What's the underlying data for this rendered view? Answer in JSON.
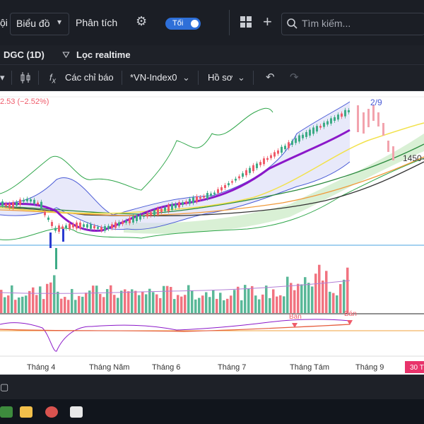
{
  "menu": {
    "partial_left": "ội",
    "chart_select": "Biểu đồ",
    "analysis": "Phân tích",
    "theme_toggle": "Tối",
    "search_placeholder": "Tìm kiếm..."
  },
  "subbar": {
    "symbol": "DGC (1D)",
    "filter": "Lọc realtime"
  },
  "toolbar": {
    "indicators": "Các chỉ báo",
    "compare": "*VN-Index0",
    "profile": "Hồ sơ"
  },
  "chart": {
    "change_text": "2.53 (−2.52%)",
    "annotation_date": "2/9",
    "annotation_value": "1450-",
    "signal_1": "Bán",
    "signal_2": "Bán"
  },
  "chart_data": {
    "type": "candlestick",
    "x_ticks": [
      "Tháng 4",
      "Tháng Năm",
      "Tháng 6",
      "Tháng 7",
      "Tháng Tám",
      "Tháng 9"
    ],
    "date_badge": "30 T",
    "colors": {
      "up": "#3dab86",
      "down": "#ef5b6a",
      "bollinger": "#4a5bd6",
      "ma_purple": "#8b18c9",
      "ma_yellow": "#f2e24c",
      "ma_green": "#2b8a3e",
      "ma_orange": "#f09a3a",
      "ma_black": "#333333",
      "cloud": "#c6e8c1"
    }
  },
  "taskbar": {
    "items": [
      "windows-icon",
      "excel-icon",
      "folder-icon",
      "app-icon",
      "app2-icon"
    ]
  }
}
